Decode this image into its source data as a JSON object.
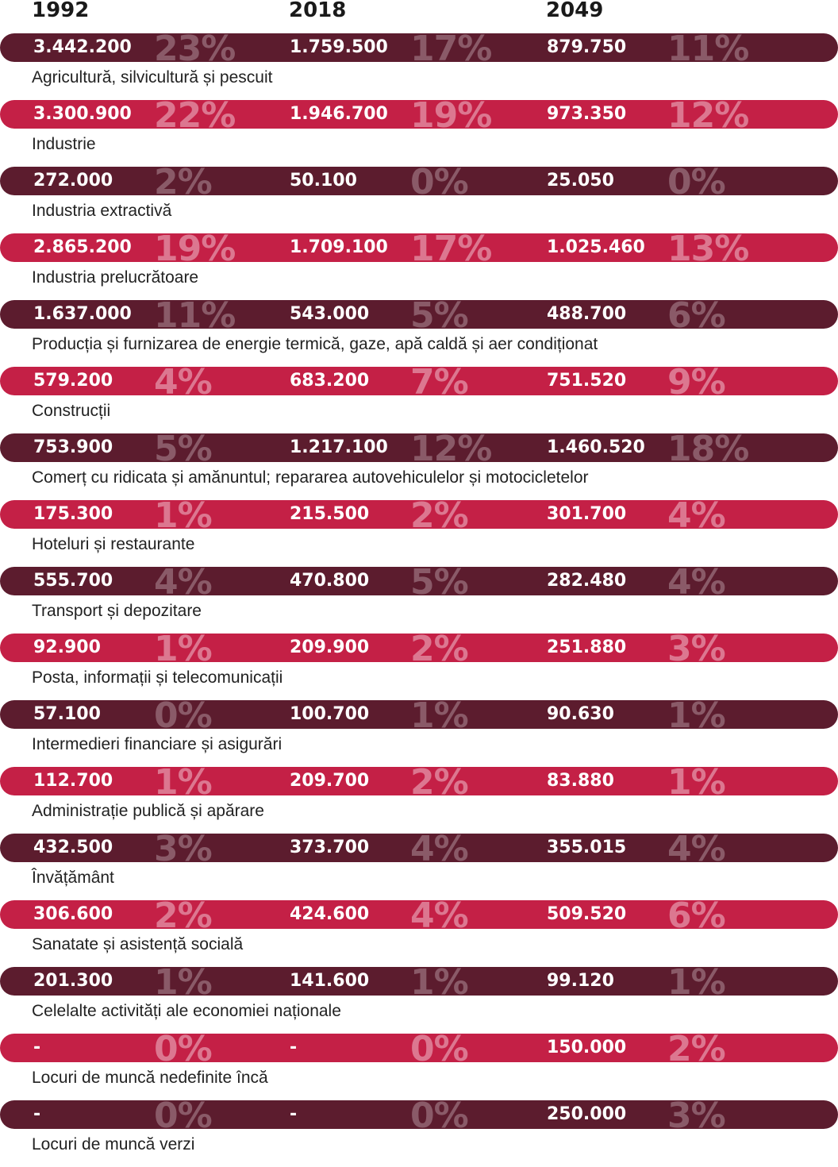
{
  "chart_data": {
    "type": "table",
    "columns": [
      "1992",
      "2018",
      "2049"
    ],
    "colors": {
      "dark_bar": "#5c1c2e",
      "light_bar": "#c42046"
    },
    "rows": [
      {
        "label": "Agricultură, silvicultură și pescuit",
        "values": [
          "3.442.200",
          "1.759.500",
          "879.750"
        ],
        "pcts": [
          "23%",
          "17%",
          "11%"
        ]
      },
      {
        "label": "Industrie",
        "values": [
          "3.300.900",
          "1.946.700",
          "973.350"
        ],
        "pcts": [
          "22%",
          "19%",
          "12%"
        ]
      },
      {
        "label": "Industria extractivă",
        "values": [
          "272.000",
          "50.100",
          "25.050"
        ],
        "pcts": [
          "2%",
          "0%",
          "0%"
        ]
      },
      {
        "label": "Industria prelucrătoare",
        "values": [
          "2.865.200",
          "1.709.100",
          "1.025.460"
        ],
        "pcts": [
          "19%",
          "17%",
          "13%"
        ]
      },
      {
        "label": "Producția și furnizarea de energie termică, gaze, apă caldă și aer condiționat",
        "values": [
          "1.637.000",
          "543.000",
          "488.700"
        ],
        "pcts": [
          "11%",
          "5%",
          "6%"
        ]
      },
      {
        "label": "Construcții",
        "values": [
          "579.200",
          "683.200",
          "751.520"
        ],
        "pcts": [
          "4%",
          "7%",
          "9%"
        ]
      },
      {
        "label": "Comerț cu ridicata și amănuntul; repararea autovehiculelor și motocicletelor",
        "values": [
          "753.900",
          "1.217.100",
          "1.460.520"
        ],
        "pcts": [
          "5%",
          "12%",
          "18%"
        ]
      },
      {
        "label": "Hoteluri și restaurante",
        "values": [
          "175.300",
          "215.500",
          "301.700"
        ],
        "pcts": [
          "1%",
          "2%",
          "4%"
        ]
      },
      {
        "label": "Transport și depozitare",
        "values": [
          "555.700",
          "470.800",
          "282.480"
        ],
        "pcts": [
          "4%",
          "5%",
          "4%"
        ]
      },
      {
        "label": "Posta, informații și telecomunicații",
        "values": [
          "92.900",
          "209.900",
          "251.880"
        ],
        "pcts": [
          "1%",
          "2%",
          "3%"
        ]
      },
      {
        "label": "Intermedieri financiare și asigurări",
        "values": [
          "57.100",
          "100.700",
          "90.630"
        ],
        "pcts": [
          "0%",
          "1%",
          "1%"
        ]
      },
      {
        "label": "Administrație publică și apărare",
        "values": [
          "112.700",
          "209.700",
          "83.880"
        ],
        "pcts": [
          "1%",
          "2%",
          "1%"
        ]
      },
      {
        "label": "Învățământ",
        "values": [
          "432.500",
          "373.700",
          "355.015"
        ],
        "pcts": [
          "3%",
          "4%",
          "4%"
        ]
      },
      {
        "label": "Sanatate și asistență socială",
        "values": [
          "306.600",
          "424.600",
          "509.520"
        ],
        "pcts": [
          "2%",
          "4%",
          "6%"
        ]
      },
      {
        "label": "Celelalte activități ale economiei naționale",
        "values": [
          "201.300",
          "141.600",
          "99.120"
        ],
        "pcts": [
          "1%",
          "1%",
          "1%"
        ]
      },
      {
        "label": "Locuri de muncă nedefinite încă",
        "values": [
          "-",
          "-",
          "150.000"
        ],
        "pcts": [
          "0%",
          "0%",
          "2%"
        ]
      },
      {
        "label": "Locuri de muncă verzi",
        "values": [
          "-",
          "-",
          "250.000"
        ],
        "pcts": [
          "0%",
          "0%",
          "3%"
        ]
      }
    ]
  }
}
